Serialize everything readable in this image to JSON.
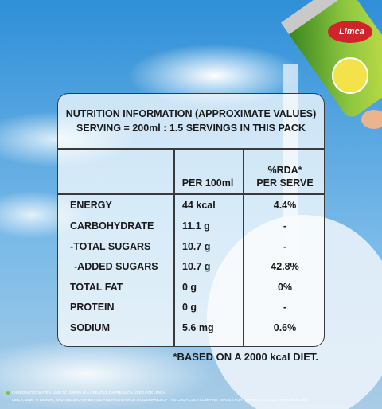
{
  "brand": "Limca",
  "nutrition": {
    "title_lines": [
      "NUTRITION INFORMATION (APPROXIMATE VALUES)",
      "SERVING = 200ml : 1.5 SERVINGS IN THIS PACK"
    ],
    "header": {
      "per_100ml": "PER 100ml",
      "rda_lines": [
        "%RDA*",
        "PER SERVE"
      ]
    },
    "rows": [
      [
        "ENERGY",
        "44 kcal",
        "4.4%"
      ],
      [
        "CARBOHYDRATE",
        "11.1 g",
        "-"
      ],
      [
        "-TOTAL SUGARS",
        "10.7 g",
        "-"
      ],
      [
        "-ADDED SUGARS",
        "10.7 g",
        "42.8%"
      ],
      [
        "TOTAL FAT",
        "0 g",
        "0%"
      ],
      [
        "PROTEIN",
        "0 g",
        "-"
      ],
      [
        "SODIUM",
        "5.6 mg",
        "0.6%"
      ]
    ],
    "footnote": "*BASED ON A 2000 kcal DIET."
  },
  "disclaimer": [
    "CARBONATED WATER. LIME 'N' LEMONI IS A CREATIVE EXPRESSION USED FOR LIMCA.",
    "LIMCA, LIME 'N' LEMONI, AND THE SPLASH BOTTLE ARE REGISTERED TRADEMARKS OF THE COCA-COLA COMPANY. IMAGES FOR REPRESENTATION PURPOSES ONLY."
  ]
}
